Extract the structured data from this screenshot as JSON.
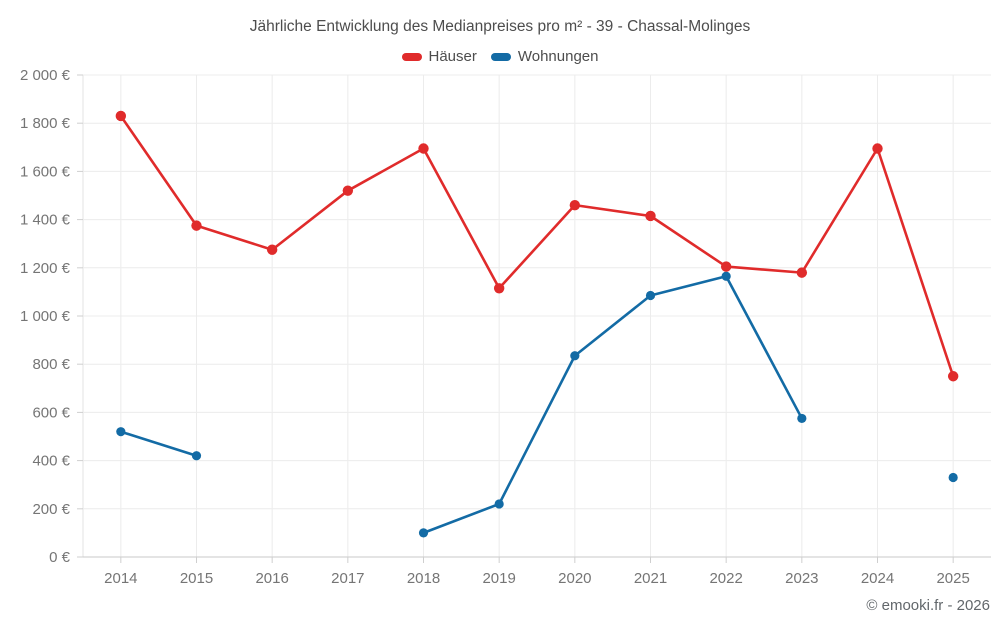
{
  "title": "Jährliche Entwicklung des Medianpreises pro m² - 39 - Chassal-Molinges",
  "footer": "© emooki.fr - 2026",
  "colors": {
    "haeuser": "#e02b2b",
    "wohnungen": "#136ba5",
    "grid": "#ececec",
    "axis_line": "#c9c9c9",
    "tick": "#cfcfcf",
    "tick_text": "#757575",
    "title_text": "#4d4d4d"
  },
  "chart_data": {
    "type": "line",
    "title": "Jährliche Entwicklung des Medianpreises pro m² - 39 - Chassal-Molinges",
    "x": [
      "2014",
      "2015",
      "2016",
      "2017",
      "2018",
      "2019",
      "2020",
      "2021",
      "2022",
      "2023",
      "2024",
      "2025"
    ],
    "series": [
      {
        "name": "Häuser",
        "color": "#e02b2b",
        "values": [
          1830,
          1375,
          1275,
          1520,
          1695,
          1115,
          1460,
          1415,
          1205,
          1180,
          1695,
          750
        ]
      },
      {
        "name": "Wohnungen",
        "color": "#136ba5",
        "values": [
          520,
          420,
          null,
          null,
          100,
          220,
          835,
          1085,
          1165,
          575,
          null,
          330
        ]
      }
    ],
    "xlabel": "",
    "ylabel": "",
    "ylim": [
      0,
      2000
    ],
    "y_tick_step": 200,
    "y_tick_labels": [
      "0 €",
      "200 €",
      "400 €",
      "600 €",
      "800 €",
      "1 000 €",
      "1 200 €",
      "1 400 €",
      "1 600 €",
      "1 800 €",
      "2 000 €"
    ],
    "grid": true,
    "legend_position": "top"
  }
}
